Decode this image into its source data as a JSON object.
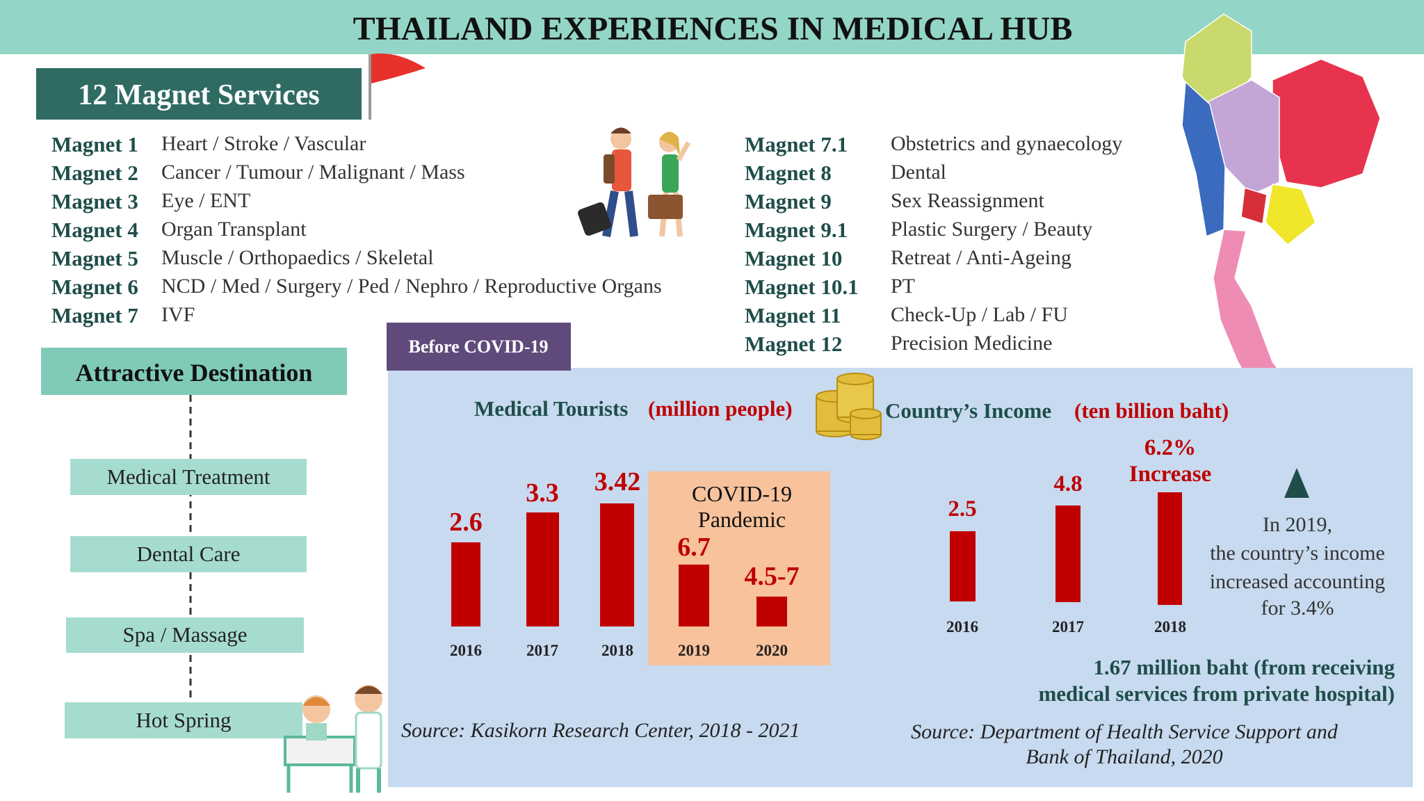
{
  "header": {
    "title": "THAILAND EXPERIENCES IN MEDICAL HUB"
  },
  "magnet_services": {
    "title": "12 Magnet Services",
    "left": [
      {
        "label": "Magnet 1",
        "service": "Heart / Stroke / Vascular"
      },
      {
        "label": "Magnet 2",
        "service": "Cancer / Tumour / Malignant / Mass"
      },
      {
        "label": "Magnet 3",
        "service": "Eye / ENT"
      },
      {
        "label": "Magnet 4",
        "service": "Organ Transplant"
      },
      {
        "label": "Magnet 5",
        "service": "Muscle / Orthopaedics / Skeletal"
      },
      {
        "label": "Magnet 6",
        "service": "NCD / Med / Surgery / Ped / Nephro / Reproductive Organs"
      },
      {
        "label": "Magnet 7",
        "service": "IVF"
      }
    ],
    "right": [
      {
        "label": "Magnet 7.1",
        "service": "Obstetrics and gynaecology"
      },
      {
        "label": "Magnet 8",
        "service": "Dental"
      },
      {
        "label": "Magnet 9",
        "service": "Sex Reassignment"
      },
      {
        "label": "Magnet 9.1",
        "service": "Plastic Surgery / Beauty"
      },
      {
        "label": "Magnet 10",
        "service": "Retreat / Anti-Ageing"
      },
      {
        "label": "Magnet 10.1",
        "service": "PT"
      },
      {
        "label": "Magnet 11",
        "service": "Check-Up / Lab / FU"
      },
      {
        "label": "Magnet 12",
        "service": "Precision Medicine"
      }
    ]
  },
  "attractive_destination": {
    "title": "Attractive Destination",
    "items": [
      "Medical Treatment",
      "Dental Care",
      "Spa / Massage",
      "Hot Spring"
    ]
  },
  "before_covid": {
    "label": "Before COVID-19",
    "medical_tourists": {
      "title": "Medical Tourists",
      "unit": "(million people)",
      "bars": [
        {
          "year": "2016",
          "value": "2.6"
        },
        {
          "year": "2017",
          "value": "3.3"
        },
        {
          "year": "2018",
          "value": "3.42"
        },
        {
          "year": "2019",
          "value": "6.7"
        },
        {
          "year": "2020",
          "value": "4.5-7"
        }
      ],
      "pandemic_note": [
        "COVID-19",
        "Pandemic"
      ],
      "source": "Source: Kasikorn Research Center, 2018 - 2021"
    },
    "income": {
      "title": "Country’s Income",
      "unit": "(ten billion baht)",
      "bars": [
        {
          "year": "2016",
          "value": "2.5"
        },
        {
          "year": "2017",
          "value": "4.8"
        },
        {
          "year": "2018",
          "value": "6.2%"
        }
      ],
      "increase_label": "Increase",
      "note": [
        "In 2019,",
        "the country’s income",
        "increased accounting",
        "for 3.4%"
      ],
      "footnote": [
        "1.67 million baht (from receiving",
        "medical services from private hospital)"
      ],
      "source": [
        "Source: Department of Health Service Support and",
        "Bank of Thailand, 2020"
      ]
    }
  }
}
